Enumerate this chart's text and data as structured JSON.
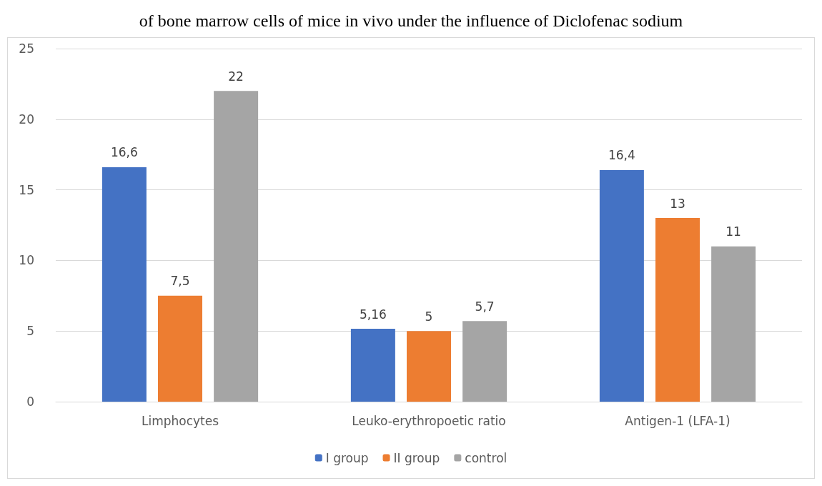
{
  "chart_data": {
    "type": "bar",
    "title": "of bone marrow cells of mice in vivo under the influence of Diclofenac sodium",
    "categories": [
      "Limphocytes",
      "Leuko-erythropoetic ratio",
      "Antigen-1 (LFA-1)"
    ],
    "series": [
      {
        "name": "I group",
        "color": "#4472c4",
        "values": [
          16.6,
          5.16,
          16.4
        ],
        "value_labels": [
          "16,6",
          "5,16",
          "16,4"
        ]
      },
      {
        "name": "II group",
        "color": "#ed7d31",
        "values": [
          7.5,
          5,
          13
        ],
        "value_labels": [
          "7,5",
          "5",
          "13"
        ]
      },
      {
        "name": "control",
        "color": "#a5a5a5",
        "values": [
          22,
          5.7,
          11
        ],
        "value_labels": [
          "22",
          "5,7",
          "11"
        ]
      }
    ],
    "ylim": [
      0,
      25
    ],
    "yticks": [
      0,
      5,
      10,
      15,
      20,
      25
    ],
    "grid": "y",
    "legend": "bottom"
  }
}
